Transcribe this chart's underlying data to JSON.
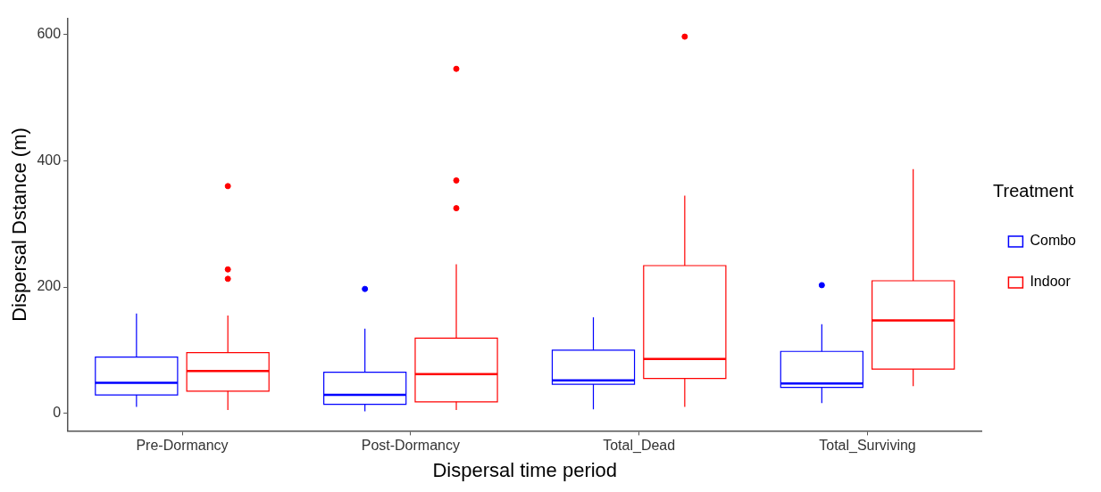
{
  "chart_data": {
    "type": "box",
    "xlabel": "Dispersal time period",
    "ylabel": "Dispersal Dstance (m)",
    "legend_title": "Treatment",
    "legend": "right",
    "grid": false,
    "categories": [
      "Pre-Dormancy",
      "Post-Dormancy",
      "Total_Dead",
      "Total_Surviving"
    ],
    "ylim": [
      -28,
      626
    ],
    "yticks": [
      0,
      200,
      400,
      600
    ],
    "series": [
      {
        "name": "Combo",
        "color": "#0000ff",
        "boxes": [
          {
            "low": 10,
            "q1": 29,
            "median": 48,
            "q3": 89,
            "high": 158
          },
          {
            "low": 3,
            "q1": 14,
            "median": 29,
            "q3": 65,
            "high": 134,
            "outliers": [
              197
            ]
          },
          {
            "low": 6,
            "q1": 46,
            "median": 52,
            "q3": 100,
            "high": 152
          },
          {
            "low": 16,
            "q1": 41,
            "median": 47,
            "q3": 98,
            "high": 141,
            "outliers": [
              203
            ]
          }
        ]
      },
      {
        "name": "Indoor",
        "color": "#ff0000",
        "boxes": [
          {
            "low": 5,
            "q1": 35,
            "median": 67,
            "q3": 96,
            "high": 155,
            "outliers": [
              360,
              228,
              213
            ]
          },
          {
            "low": 5,
            "q1": 18,
            "median": 62,
            "q3": 119,
            "high": 236,
            "outliers": [
              546,
              369,
              325
            ]
          },
          {
            "low": 10,
            "q1": 55,
            "median": 86,
            "q3": 234,
            "high": 345,
            "outliers": [
              597
            ]
          },
          {
            "low": 43,
            "q1": 70,
            "median": 147,
            "q3": 210,
            "high": 387
          }
        ]
      }
    ]
  }
}
